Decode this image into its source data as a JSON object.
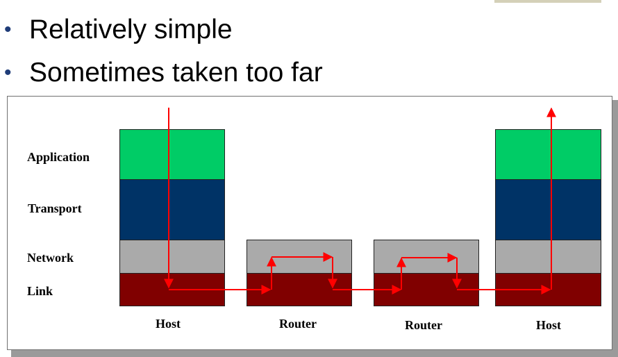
{
  "bullets": [
    {
      "text": "Relatively simple"
    },
    {
      "text": "Sometimes taken too far"
    }
  ],
  "diagram": {
    "layers": {
      "application": "Application",
      "transport": "Transport",
      "network": "Network",
      "link": "Link"
    },
    "devices": [
      {
        "label": "Host"
      },
      {
        "label": "Router"
      },
      {
        "label": "Router"
      },
      {
        "label": "Host"
      }
    ],
    "colors": {
      "application": "#00cc66",
      "transport": "#003366",
      "network": "#aaaaaa",
      "link": "#800000",
      "path": "#ff0000"
    }
  }
}
